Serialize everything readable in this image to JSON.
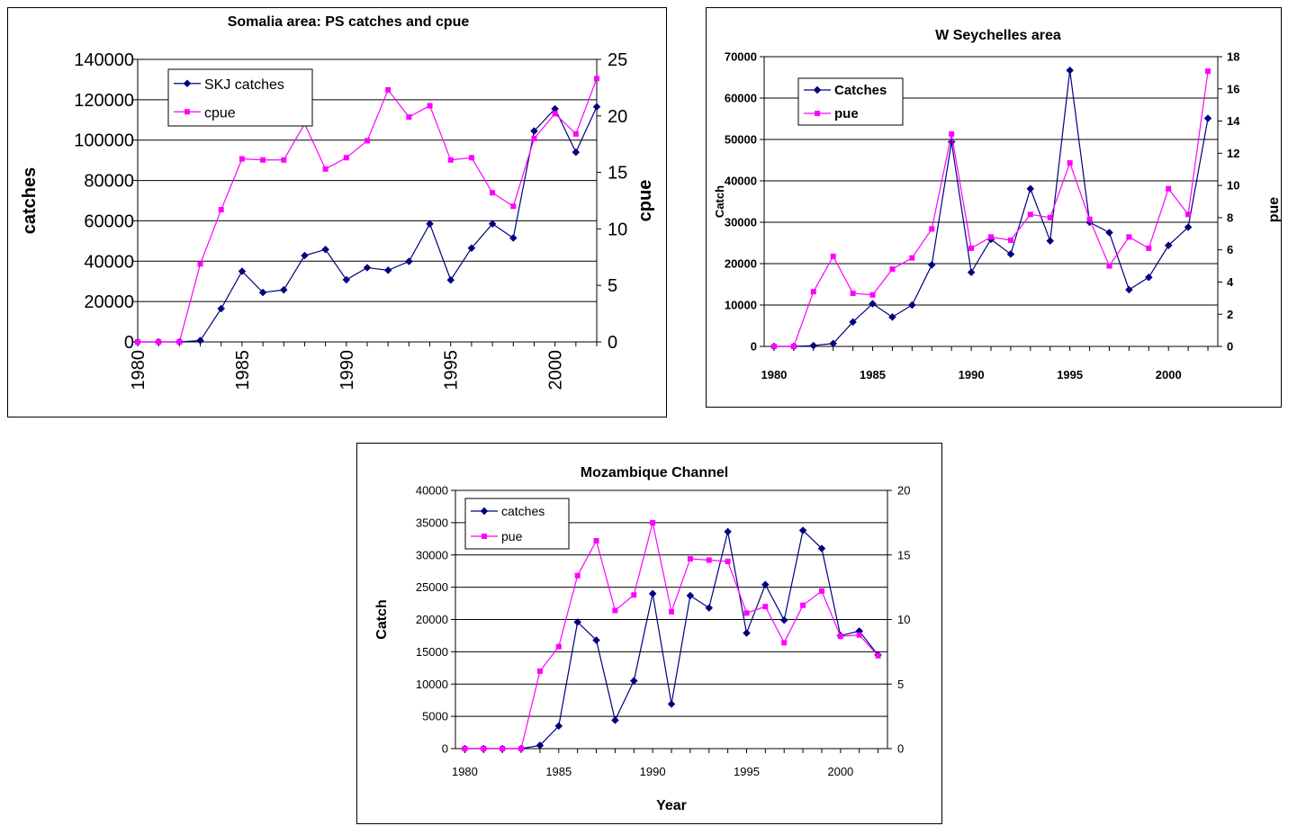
{
  "chart_data": [
    {
      "type": "line",
      "title": "Somalia area: PS catches and cpue",
      "xlabel": "",
      "ylabel": "catches",
      "y2label": "cpue",
      "x": [
        1980,
        1981,
        1982,
        1983,
        1984,
        1985,
        1986,
        1987,
        1988,
        1989,
        1990,
        1991,
        1992,
        1993,
        1994,
        1995,
        1996,
        1997,
        1998,
        1999,
        2000,
        2001,
        2002
      ],
      "xticks": [
        1980,
        1985,
        1990,
        1995,
        2000
      ],
      "ylim": [
        0,
        140000
      ],
      "yticks": [
        0,
        20000,
        40000,
        60000,
        80000,
        100000,
        120000,
        140000
      ],
      "y2lim": [
        0,
        25
      ],
      "y2ticks": [
        0,
        5,
        10,
        15,
        20,
        25
      ],
      "grid": "horizontal",
      "legend_position": "top-left",
      "series": [
        {
          "name": "SKJ catches",
          "axis": "left",
          "color": "#000080",
          "marker": "diamond",
          "values": [
            0,
            0,
            0,
            700,
            16500,
            35000,
            24500,
            25800,
            42800,
            45800,
            30800,
            36800,
            35500,
            39900,
            58500,
            30700,
            46500,
            58500,
            51500,
            104500,
            115500,
            94000,
            116500
          ]
        },
        {
          "name": "cpue",
          "axis": "right",
          "color": "#FF00FF",
          "marker": "square",
          "values": [
            0,
            0,
            0,
            6.9,
            11.7,
            16.2,
            16.1,
            16.1,
            19.3,
            15.3,
            16.3,
            17.8,
            22.3,
            19.9,
            20.9,
            16.1,
            16.3,
            13.2,
            12.0,
            18.0,
            20.2,
            18.4,
            23.3
          ]
        }
      ]
    },
    {
      "type": "line",
      "title": "W Seychelles area",
      "xlabel": "",
      "ylabel": "Catch",
      "y2label": "pue",
      "x": [
        1980,
        1981,
        1982,
        1983,
        1984,
        1985,
        1986,
        1987,
        1988,
        1989,
        1990,
        1991,
        1992,
        1993,
        1994,
        1995,
        1996,
        1997,
        1998,
        1999,
        2000,
        2001,
        2002
      ],
      "xticks": [
        1980,
        1985,
        1990,
        1995,
        2000
      ],
      "ylim": [
        0,
        70000
      ],
      "yticks": [
        0,
        10000,
        20000,
        30000,
        40000,
        50000,
        60000,
        70000
      ],
      "y2lim": [
        0,
        18
      ],
      "y2ticks": [
        0,
        2,
        4,
        6,
        8,
        10,
        12,
        14,
        16,
        18
      ],
      "grid": "horizontal",
      "legend_position": "top-left",
      "series": [
        {
          "name": "Catches",
          "axis": "left",
          "color": "#000080",
          "marker": "diamond",
          "values": [
            0,
            0,
            200,
            700,
            5900,
            10300,
            7100,
            10000,
            19700,
            49400,
            17900,
            25900,
            22300,
            38100,
            25500,
            66700,
            30000,
            27500,
            13700,
            16700,
            24400,
            28800,
            55100
          ]
        },
        {
          "name": "pue",
          "axis": "right",
          "color": "#FF00FF",
          "marker": "square",
          "values": [
            0,
            0,
            3.4,
            5.6,
            3.3,
            3.2,
            4.8,
            5.5,
            7.3,
            13.2,
            6.1,
            6.8,
            6.6,
            8.2,
            8.0,
            11.4,
            7.9,
            5.0,
            6.8,
            6.1,
            9.8,
            8.2,
            17.1
          ]
        }
      ]
    },
    {
      "type": "line",
      "title": "Mozambique Channel",
      "xlabel": "Year",
      "ylabel": "Catch",
      "y2label": "",
      "x": [
        1980,
        1981,
        1982,
        1983,
        1984,
        1985,
        1986,
        1987,
        1988,
        1989,
        1990,
        1991,
        1992,
        1993,
        1994,
        1995,
        1996,
        1997,
        1998,
        1999,
        2000,
        2001,
        2002
      ],
      "xticks": [
        1980,
        1985,
        1990,
        1995,
        2000
      ],
      "ylim": [
        0,
        40000
      ],
      "yticks": [
        0,
        5000,
        10000,
        15000,
        20000,
        25000,
        30000,
        35000,
        40000
      ],
      "y2lim": [
        0,
        20
      ],
      "y2ticks": [
        0,
        5,
        10,
        15,
        20
      ],
      "grid": "horizontal",
      "legend_position": "top-left",
      "series": [
        {
          "name": "catches",
          "axis": "left",
          "color": "#000080",
          "marker": "diamond",
          "values": [
            0,
            0,
            0,
            0,
            500,
            3500,
            19600,
            16800,
            4400,
            10500,
            24000,
            6900,
            23700,
            21800,
            33600,
            17900,
            25400,
            19900,
            33800,
            31000,
            17500,
            18200,
            14500
          ]
        },
        {
          "name": "pue",
          "axis": "right",
          "color": "#FF00FF",
          "marker": "square",
          "values": [
            0,
            0,
            0,
            0,
            6.0,
            7.9,
            13.4,
            16.1,
            10.7,
            11.9,
            17.5,
            10.6,
            14.7,
            14.6,
            14.5,
            10.5,
            11.0,
            8.2,
            11.1,
            12.2,
            8.7,
            8.8,
            7.2
          ]
        }
      ]
    }
  ]
}
